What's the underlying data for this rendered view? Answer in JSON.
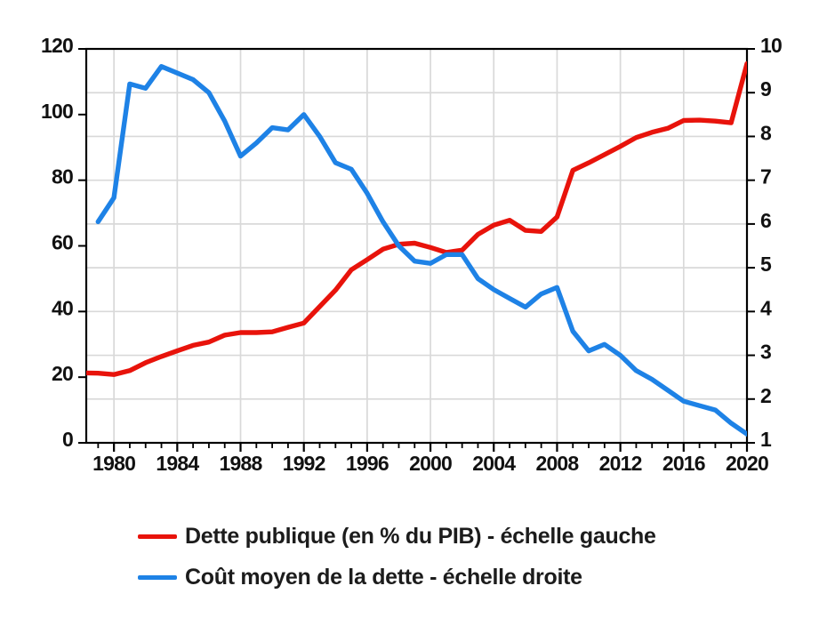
{
  "page": {
    "background": "#ffffff"
  },
  "colors": {
    "axis": "#000000",
    "tick_label": "#111111",
    "grid": "#d9d9d9",
    "debt_red": "#e8130b",
    "cost_blue": "#1e82e6",
    "legend_text": "#1c1c1c"
  },
  "legend": {
    "items": [
      {
        "label": "Dette publique (en % du PIB) - échelle gauche",
        "color": "#e8130b"
      },
      {
        "label": "Coût moyen de la dette - échelle droite",
        "color": "#1e82e6"
      }
    ]
  },
  "chart_data": {
    "type": "line",
    "title": "",
    "x_axis": {
      "min": 1978.25,
      "max": 2020,
      "major_ticks": [
        1980,
        1984,
        1988,
        1992,
        1996,
        2000,
        2004,
        2008,
        2012,
        2016,
        2020
      ],
      "gridline_years": [
        1980,
        1984,
        1988,
        1992,
        1996,
        2000,
        2004,
        2008,
        2012,
        2016
      ],
      "minor_start": 1979,
      "minor_end": 2019,
      "minor_step": 1
    },
    "y_left_axis": {
      "min": 0,
      "max": 120,
      "ticks": [
        0,
        20,
        40,
        60,
        80,
        100,
        120
      ]
    },
    "y_right_axis": {
      "min": 1,
      "max": 10,
      "ticks": [
        1,
        2,
        3,
        4,
        5,
        6,
        7,
        8,
        9,
        10
      ]
    },
    "grid": {
      "horizontal_at_right_values": [
        2,
        3,
        4,
        5,
        6,
        7,
        8,
        9
      ],
      "color": "#d9d9d9"
    },
    "legend_position": "bottom",
    "series": [
      {
        "name": "Dette publique (en % du PIB) - échelle gauche",
        "axis": "left",
        "color": "#e8130b",
        "x": [
          1978,
          1979,
          1980,
          1981,
          1982,
          1983,
          1984,
          1985,
          1986,
          1987,
          1988,
          1989,
          1990,
          1991,
          1992,
          1993,
          1994,
          1995,
          1996,
          1997,
          1998,
          1999,
          2000,
          2001,
          2002,
          2003,
          2004,
          2005,
          2006,
          2007,
          2008,
          2009,
          2010,
          2011,
          2012,
          2013,
          2014,
          2015,
          2016,
          2017,
          2018,
          2019,
          2020
        ],
        "values": [
          21.3,
          21.2,
          20.8,
          22.0,
          24.4,
          26.3,
          28.0,
          29.7,
          30.7,
          32.8,
          33.6,
          33.6,
          33.8,
          35.2,
          36.5,
          41.5,
          46.5,
          52.7,
          55.8,
          59.0,
          60.5,
          60.8,
          59.5,
          58.0,
          58.7,
          63.5,
          66.3,
          67.8,
          64.7,
          64.4,
          68.8,
          83.0,
          85.3,
          87.8,
          90.3,
          93.0,
          94.6,
          95.8,
          98.2,
          98.3,
          98.0,
          97.5,
          115.5
        ]
      },
      {
        "name": "Coût moyen de la dette - échelle droite",
        "axis": "right",
        "color": "#1e82e6",
        "x": [
          1979,
          1980,
          1981,
          1982,
          1983,
          1984,
          1985,
          1986,
          1987,
          1988,
          1989,
          1990,
          1991,
          1992,
          1993,
          1994,
          1995,
          1996,
          1997,
          1998,
          1999,
          2000,
          2001,
          2002,
          2003,
          2004,
          2005,
          2006,
          2007,
          2008,
          2009,
          2010,
          2011,
          2012,
          2013,
          2014,
          2015,
          2016,
          2017,
          2018,
          2019,
          2020
        ],
        "values": [
          6.05,
          6.6,
          9.2,
          9.1,
          9.6,
          9.45,
          9.3,
          9.0,
          8.35,
          7.55,
          7.85,
          8.2,
          8.15,
          8.5,
          8.0,
          7.4,
          7.25,
          6.7,
          6.05,
          5.5,
          5.15,
          5.1,
          5.3,
          5.3,
          4.75,
          4.5,
          4.3,
          4.1,
          4.4,
          4.55,
          3.55,
          3.1,
          3.25,
          3.0,
          2.65,
          2.45,
          2.2,
          1.95,
          1.85,
          1.75,
          1.45,
          1.2
        ]
      }
    ]
  }
}
